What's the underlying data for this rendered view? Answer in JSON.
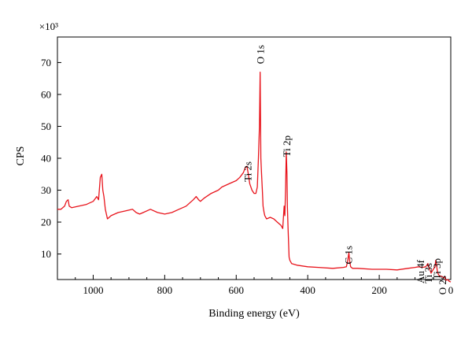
{
  "chart_data": {
    "type": "line",
    "title": "",
    "xlabel": "Binding energy (eV)",
    "ylabel": "CPS",
    "y_multiplier": "×10³",
    "xlim": [
      1100,
      0
    ],
    "x_reversed": true,
    "ylim": [
      2,
      78
    ],
    "x_ticks": [
      1000,
      800,
      600,
      400,
      200,
      0
    ],
    "y_ticks": [
      10,
      20,
      30,
      40,
      50,
      60,
      70
    ],
    "grid": false,
    "legend": "none",
    "line_color": "#e8141c",
    "series": [
      {
        "x": [
          1100,
          1090,
          1080,
          1075,
          1070,
          1067,
          1060,
          1040,
          1020,
          1000,
          990,
          985,
          980,
          976,
          973,
          970,
          966,
          960,
          950,
          930,
          910,
          890,
          880,
          870,
          860,
          840,
          820,
          800,
          780,
          760,
          740,
          720,
          712,
          705,
          700,
          690,
          670,
          650,
          640,
          620,
          600,
          590,
          580,
          575,
          570,
          566,
          562,
          556,
          550,
          545,
          541,
          538,
          535,
          533,
          531,
          529,
          527,
          525,
          522,
          520,
          515,
          505,
          495,
          485,
          475,
          470,
          466,
          464,
          462,
          460,
          458,
          457,
          455,
          452,
          450,
          445,
          430,
          400,
          370,
          330,
          300,
          292,
          288,
          285,
          283,
          280,
          275,
          260,
          220,
          180,
          150,
          120,
          100,
          90,
          80,
          70,
          64,
          62,
          58,
          55,
          50,
          44,
          42,
          40,
          38,
          36,
          34,
          30,
          25,
          20,
          17,
          15,
          12,
          8,
          5,
          0
        ],
        "y": [
          24,
          24,
          25,
          26.5,
          27,
          25,
          24.5,
          25,
          25.5,
          26.5,
          28,
          27,
          34,
          35,
          30,
          28,
          24,
          21,
          22,
          23,
          23.5,
          24,
          23,
          22.5,
          23,
          24,
          23,
          22.5,
          23,
          24,
          25,
          27,
          28,
          27,
          26.5,
          27.5,
          29,
          30,
          31,
          32,
          33,
          34,
          35.5,
          37,
          37.5,
          35,
          32,
          30,
          29,
          29,
          31,
          40,
          50,
          67,
          40,
          35,
          30,
          25,
          23,
          22,
          21,
          21.5,
          21,
          20,
          19,
          18,
          25,
          22,
          30,
          42,
          35,
          25,
          18,
          9,
          8,
          7,
          6.5,
          6,
          5.8,
          5.5,
          5.8,
          6,
          8,
          10.5,
          8,
          6,
          5.5,
          5.5,
          5.2,
          5.2,
          5,
          5.5,
          5.8,
          6,
          5.8,
          6,
          7,
          6,
          5,
          4,
          5,
          6,
          8,
          7,
          5,
          4,
          3.5,
          3,
          3,
          2.5,
          3,
          2,
          1.8,
          2,
          1.5,
          1.2
        ]
      }
    ],
    "annotations": [
      {
        "text": "O 1s",
        "x": 531
      },
      {
        "text": "Ti 2s",
        "x": 566
      },
      {
        "text": "Ti 2p",
        "x": 458
      },
      {
        "text": "C 1s",
        "x": 285
      },
      {
        "text": "Au 4f",
        "x": 84
      },
      {
        "text": "Ti 3s",
        "x": 62
      },
      {
        "text": "Ti 3p",
        "x": 37
      },
      {
        "text": "O 2s",
        "x": 22
      }
    ]
  }
}
